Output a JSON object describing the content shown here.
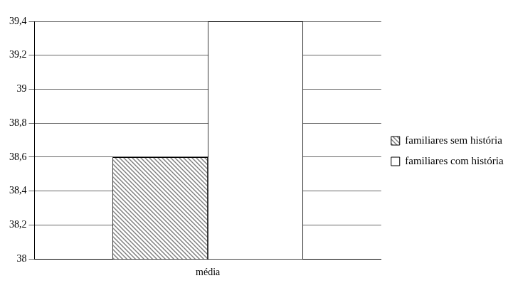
{
  "chart_data": {
    "type": "bar",
    "categories": [
      "média"
    ],
    "series": [
      {
        "name": "familiares sem história",
        "color": "#808080",
        "values": [
          38.6
        ]
      },
      {
        "name": "familiares com história",
        "color": "#ffffff",
        "values": [
          39.4
        ]
      }
    ],
    "ylim": [
      38,
      39.4
    ],
    "yticks": [
      38,
      {
        "value": 38.2,
        "label": "38,2"
      },
      {
        "value": 38.4,
        "label": "38,4"
      },
      {
        "value": 38.6,
        "label": "38,6"
      },
      {
        "value": 38.8,
        "label": "38,8"
      },
      39,
      {
        "value": 39.2,
        "label": "39,2"
      },
      {
        "value": 39.4,
        "label": "39,4"
      }
    ],
    "grid": true,
    "legend": "right"
  }
}
